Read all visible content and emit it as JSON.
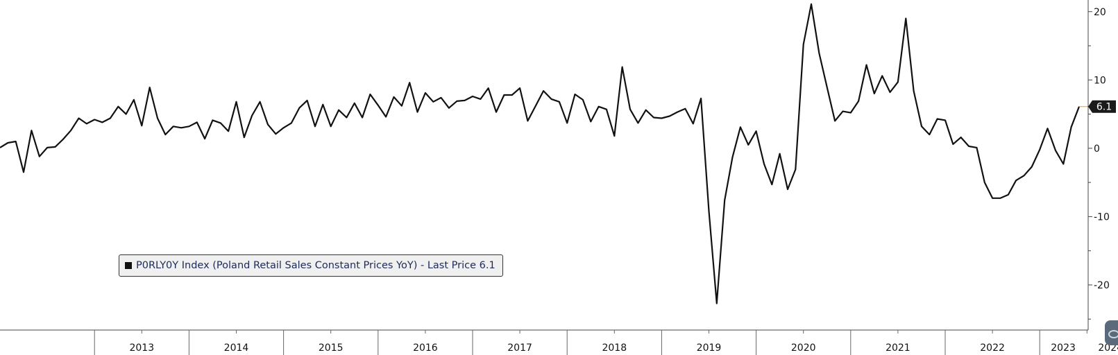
{
  "chart_data": {
    "type": "line",
    "title": "",
    "xlabel": "",
    "ylabel": "",
    "ylim": [
      -26.5,
      21.7
    ],
    "yticks": [
      20,
      10,
      0,
      -10,
      -20
    ],
    "ytick_labels": [
      "20",
      "10",
      "0",
      "-10",
      "-20"
    ],
    "x_year_labels": [
      "2013",
      "2014",
      "2015",
      "2016",
      "2017",
      "2018",
      "2019",
      "2020",
      "2021",
      "2022",
      "2023",
      "2024"
    ],
    "x_start": "2012-01",
    "x_end": "2024-02",
    "grid": false,
    "legend_position": "bottom-left",
    "last_value_label": "6.1",
    "series": [
      {
        "name": "P0RLY0Y Index (Poland Retail Sales Constant Prices YoY) - Last Price 6.1",
        "color": "#111111",
        "values": [
          0.1,
          0.8,
          1.0,
          -3.5,
          2.6,
          -1.2,
          0.1,
          0.2,
          1.3,
          2.6,
          4.4,
          3.6,
          4.2,
          3.8,
          4.4,
          6.1,
          5.0,
          7.1,
          3.3,
          8.9,
          4.4,
          2.0,
          3.2,
          3.0,
          3.2,
          3.8,
          1.4,
          4.1,
          3.7,
          2.5,
          6.8,
          1.6,
          4.8,
          6.8,
          3.5,
          2.1,
          3.0,
          3.7,
          5.9,
          7.0,
          3.2,
          6.4,
          3.2,
          5.6,
          4.5,
          6.6,
          4.5,
          7.9,
          6.3,
          4.6,
          7.5,
          6.2,
          9.6,
          5.3,
          8.1,
          6.8,
          7.4,
          5.9,
          6.9,
          7.0,
          7.6,
          7.2,
          8.8,
          5.3,
          7.8,
          7.8,
          8.8,
          4.0,
          6.2,
          8.4,
          7.2,
          6.8,
          3.7,
          7.9,
          7.1,
          3.9,
          6.1,
          5.7,
          1.8,
          11.9,
          5.7,
          3.7,
          5.6,
          4.5,
          4.4,
          4.7,
          5.3,
          5.8,
          3.6,
          7.3,
          -9.2,
          -22.7,
          -7.6,
          -1.3,
          3.1,
          0.5,
          2.5,
          -2.3,
          -5.3,
          -0.8,
          -6.0,
          -3.1,
          15.2,
          21.1,
          13.9,
          8.9,
          4.0,
          5.4,
          5.2,
          6.9,
          12.2,
          8.0,
          10.6,
          8.2,
          9.7,
          19.0,
          8.4,
          3.2,
          2.0,
          4.3,
          4.1,
          0.6,
          1.6,
          0.3,
          0.1,
          -5.0,
          -7.3,
          -7.3,
          -6.8,
          -4.7,
          -4.0,
          -2.7,
          -0.2,
          2.9,
          -0.3,
          -2.3,
          3.1,
          6.1
        ]
      }
    ]
  },
  "colors": {
    "line": "#111111",
    "last_price_marker": "#ff9900",
    "last_price_bg": "#1a1a1a",
    "axis": "#555555",
    "legend_text": "#1c2a5a"
  },
  "corner_icon": "chat-bubble-icon"
}
